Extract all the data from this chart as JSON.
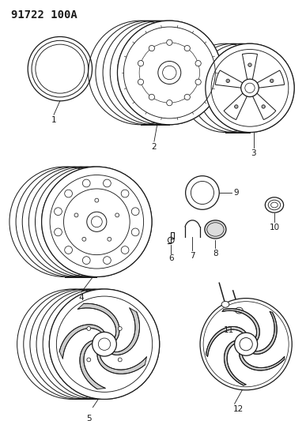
{
  "title": "91722 100A",
  "bg_color": "#ffffff",
  "line_color": "#1a1a1a",
  "title_fontsize": 10,
  "label_fontsize": 7.5,
  "figw": 3.87,
  "figh": 5.33,
  "dpi": 100
}
